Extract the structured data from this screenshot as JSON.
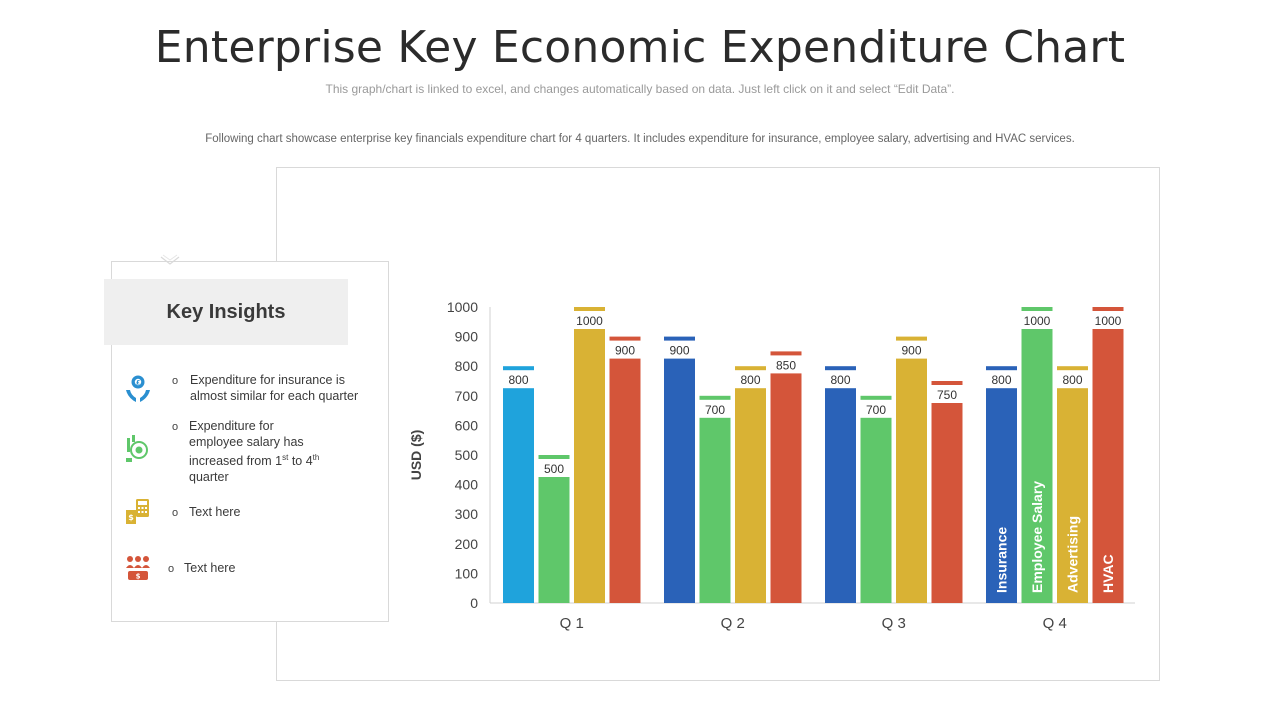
{
  "header": {
    "title": "Enterprise Key Economic Expenditure Chart",
    "subtitle": "This graph/chart is linked to excel, and changes automatically based on data. Just left click on it and select “Edit Data”.",
    "description": "Following chart showcase enterprise key financials expenditure chart for 4 quarters. It includes expenditure for insurance, employee salary, advertising and HVAC services."
  },
  "insights": {
    "title": "Key Insights",
    "items": [
      {
        "icon": "insurance-hands-icon",
        "bullet": "o",
        "text": "Expenditure for insurance is almost similar for each quarter"
      },
      {
        "icon": "salary-growth-icon",
        "bullet": "o",
        "text_line1": "Expenditure for",
        "text_line2": "employee salary has",
        "text_line3_pre": "increased from 1",
        "sup1": "st",
        "text_line3_mid": " to 4",
        "sup2": "th",
        "text_line4": "quarter"
      },
      {
        "icon": "calculator-money-icon",
        "bullet": "o",
        "text": "Text here"
      },
      {
        "icon": "people-money-icon",
        "bullet": "o",
        "text": "Text here"
      }
    ]
  },
  "colors": {
    "q1_insurance": "#1fa3dc",
    "insurance": "#2a62b8",
    "employee_salary": "#5fc76a",
    "advertising": "#d9b234",
    "hvac": "#d4553a",
    "icon_blue": "#2a8fd0",
    "icon_green": "#5fc76a",
    "icon_gold": "#d9b234",
    "icon_red": "#d4553a"
  },
  "chart_data": {
    "type": "bar",
    "categories": [
      "Q 1",
      "Q 2",
      "Q 3",
      "Q 4"
    ],
    "series": [
      {
        "name": "Insurance",
        "values": [
          800,
          900,
          800,
          800
        ]
      },
      {
        "name": "Employee Salary",
        "values": [
          500,
          700,
          700,
          1000
        ]
      },
      {
        "name": "Advertising",
        "values": [
          1000,
          800,
          900,
          800
        ]
      },
      {
        "name": "HVAC",
        "values": [
          900,
          850,
          750,
          1000
        ]
      }
    ],
    "data_labels": [
      [
        "800",
        "500",
        "1000",
        "900"
      ],
      [
        "900",
        "700",
        "800",
        "850"
      ],
      [
        "800",
        "700",
        "900",
        "750"
      ],
      [
        "800",
        "1000",
        "800",
        "1000"
      ]
    ],
    "ylabel": "USD ($)",
    "ylim": [
      0,
      1000
    ],
    "yticks": [
      "0",
      "100",
      "200",
      "300",
      "400",
      "500",
      "600",
      "700",
      "800",
      "900",
      "1000"
    ],
    "series_labels_in_category": "Q 4"
  }
}
